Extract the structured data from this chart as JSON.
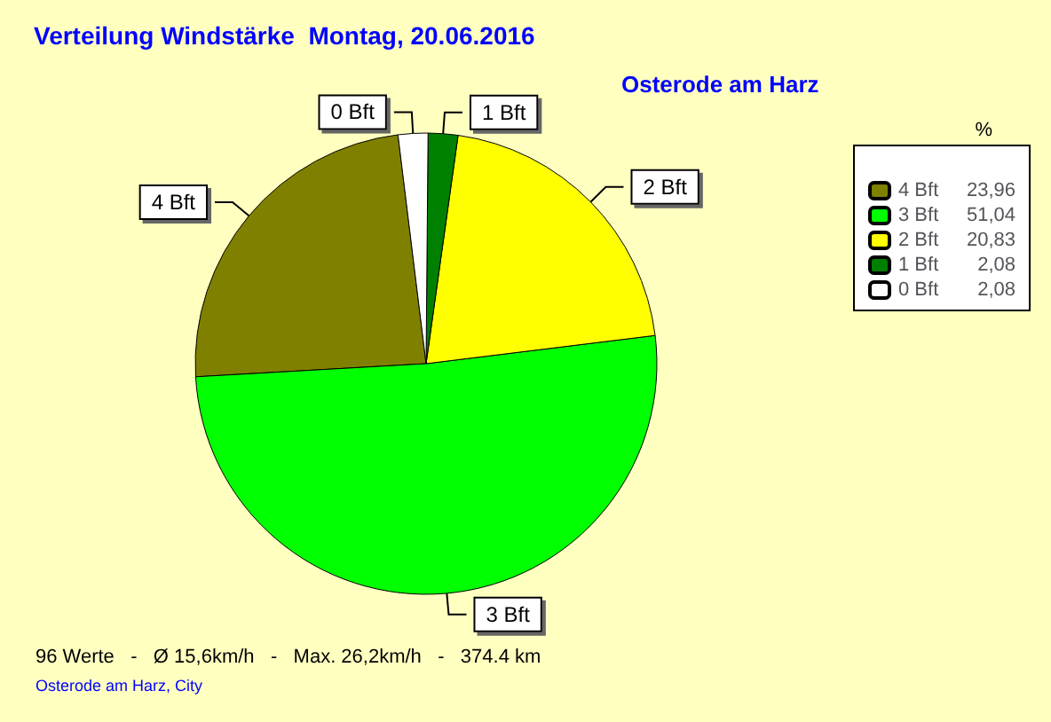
{
  "chart_data": {
    "type": "pie",
    "title": "Verteilung Windstärke  Montag, 20.06.2016",
    "subtitle": "Osterode am Harz",
    "legend_title": "%",
    "categories": [
      "4 Bft",
      "3 Bft",
      "2 Bft",
      "1 Bft",
      "0 Bft"
    ],
    "values": [
      23.96,
      51.04,
      20.83,
      2.08,
      2.08
    ],
    "value_labels": [
      "23,96",
      "51,04",
      "20,83",
      "2,08",
      "2,08"
    ],
    "colors": [
      "#808000",
      "#00ff00",
      "#ffff00",
      "#008000",
      "#ffffff"
    ],
    "legend": "top right",
    "annotations": [
      "96 Werte   -   Ø 15,6km/h   -   Max. 26,2km/h   -   374.4 km",
      "Osterode am Harz, City"
    ]
  }
}
